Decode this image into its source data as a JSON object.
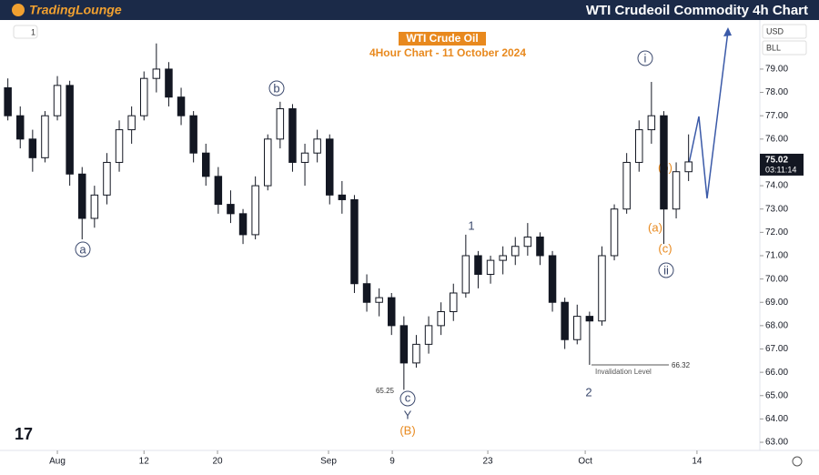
{
  "header": {
    "logo": "TradingLounge",
    "title": "WTI Crudeoil Commodity 4h Chart"
  },
  "controls": {
    "interval": "1",
    "currency": "USD",
    "unit": "BLL",
    "countdown": "03:11:14"
  },
  "chart_data": {
    "type": "candlestick",
    "title": "WTI Crude Oil",
    "subtitle": "4Hour Chart - 11 October 2024",
    "x": [
      -4,
      -3,
      -2,
      -1,
      0,
      1,
      2,
      3,
      4,
      5,
      6,
      7,
      8,
      9,
      10,
      11,
      12,
      13,
      14,
      15,
      16,
      17,
      18,
      19,
      20,
      21,
      22,
      23,
      24,
      25,
      26,
      27,
      28,
      29,
      30,
      31,
      32,
      33,
      34,
      35,
      36,
      37,
      38,
      39,
      40,
      41,
      42,
      43,
      44,
      45,
      46,
      47,
      48,
      49,
      50,
      51
    ],
    "open": [
      78.2,
      77.0,
      76.0,
      75.2,
      77.0,
      78.3,
      74.5,
      72.6,
      73.6,
      75.0,
      76.4,
      77.0,
      78.6,
      79.0,
      77.8,
      77.0,
      75.4,
      74.4,
      73.2,
      72.8,
      71.9,
      74.0,
      76.0,
      77.3,
      75.0,
      75.4,
      76.0,
      73.6,
      73.4,
      69.8,
      69.0,
      69.2,
      68.0,
      66.4,
      67.2,
      68.0,
      68.6,
      69.4,
      71.0,
      70.2,
      70.8,
      71.0,
      71.4,
      71.8,
      71.0,
      69.0,
      67.4,
      68.4,
      68.2,
      71.0,
      73.0,
      75.0,
      76.4,
      77.0,
      73.0,
      74.6
    ],
    "high": [
      78.6,
      77.4,
      76.4,
      77.2,
      78.7,
      78.5,
      74.8,
      74.0,
      75.4,
      76.8,
      77.4,
      78.9,
      80.1,
      79.3,
      78.2,
      77.2,
      75.8,
      74.8,
      73.8,
      73.0,
      74.4,
      76.2,
      77.6,
      77.5,
      75.8,
      76.4,
      76.2,
      74.2,
      73.6,
      70.2,
      69.6,
      69.4,
      68.4,
      67.6,
      68.4,
      69.0,
      69.8,
      71.9,
      71.2,
      71.0,
      71.4,
      71.8,
      72.4,
      72.0,
      71.2,
      69.2,
      68.9,
      68.6,
      71.4,
      73.2,
      75.4,
      76.8,
      78.45,
      77.2,
      75.0,
      76.2
    ],
    "low": [
      76.8,
      75.6,
      74.6,
      75.0,
      76.8,
      74.0,
      71.7,
      72.2,
      73.2,
      74.6,
      75.8,
      76.8,
      78.0,
      77.4,
      76.6,
      75.0,
      74.0,
      72.8,
      72.4,
      71.5,
      71.7,
      73.8,
      75.6,
      74.6,
      74.0,
      75.0,
      73.2,
      72.8,
      69.4,
      68.6,
      68.4,
      67.6,
      65.25,
      66.2,
      66.8,
      67.6,
      68.2,
      69.2,
      69.6,
      69.8,
      70.2,
      70.6,
      71.0,
      70.6,
      68.6,
      67.0,
      67.2,
      66.32,
      68.0,
      70.8,
      72.8,
      74.6,
      75.8,
      71.5,
      72.6,
      74.2
    ],
    "close": [
      77.0,
      76.0,
      75.2,
      77.0,
      78.3,
      74.5,
      72.6,
      73.6,
      75.0,
      76.4,
      77.0,
      78.6,
      79.0,
      77.8,
      77.0,
      75.4,
      74.4,
      73.2,
      72.8,
      71.9,
      74.0,
      76.0,
      77.3,
      75.0,
      75.4,
      76.0,
      73.6,
      73.4,
      69.8,
      69.0,
      69.2,
      68.0,
      66.4,
      67.2,
      68.0,
      68.6,
      69.4,
      71.0,
      70.2,
      70.8,
      71.0,
      71.4,
      71.8,
      71.0,
      69.0,
      67.4,
      68.4,
      68.2,
      71.0,
      73.0,
      75.0,
      76.4,
      77.0,
      73.0,
      74.6,
      75.02
    ],
    "xlim": [
      -3.9,
      56.76
    ],
    "xticks": [
      {
        "value": 0,
        "label": "Aug"
      },
      {
        "value": 7,
        "label": "12"
      },
      {
        "value": 12.94,
        "label": "20"
      },
      {
        "value": 21.91,
        "label": "Sep"
      },
      {
        "value": 27.06,
        "label": "9"
      },
      {
        "value": 34.78,
        "label": "23"
      },
      {
        "value": 42.65,
        "label": "Oct"
      },
      {
        "value": 51.68,
        "label": "14"
      }
    ],
    "ylim": [
      62.65,
      80.87
    ],
    "yticks": [
      {
        "value": 63,
        "label": "63.00"
      },
      {
        "value": 64,
        "label": "64.00"
      },
      {
        "value": 65,
        "label": "65.00"
      },
      {
        "value": 66,
        "label": "66.00"
      },
      {
        "value": 67,
        "label": "67.00"
      },
      {
        "value": 68,
        "label": "68.00"
      },
      {
        "value": 69,
        "label": "69.00"
      },
      {
        "value": 70,
        "label": "70.00"
      },
      {
        "value": 71,
        "label": "71.00"
      },
      {
        "value": 72,
        "label": "72.00"
      },
      {
        "value": 73,
        "label": "73.00"
      },
      {
        "value": 74,
        "label": "74.00"
      },
      {
        "value": 75,
        "label": "75.00"
      },
      {
        "value": 76,
        "label": "76.00"
      },
      {
        "value": 77,
        "label": "77.00"
      },
      {
        "value": 78,
        "label": "78.00"
      },
      {
        "value": 79,
        "label": "79.00"
      }
    ],
    "color": "#131722",
    "annotations": {
      "a": "a",
      "b": "b",
      "c": "c",
      "Y": "Y",
      "B": "(B)",
      "one": "1",
      "two": "2",
      "i": "i",
      "ii": "ii",
      "sa": "(a)",
      "sb": "(b)",
      "sc": "(c)",
      "low_label": "65.25",
      "inv_label": "Invalidation Level",
      "inv_value": "66.32"
    }
  }
}
